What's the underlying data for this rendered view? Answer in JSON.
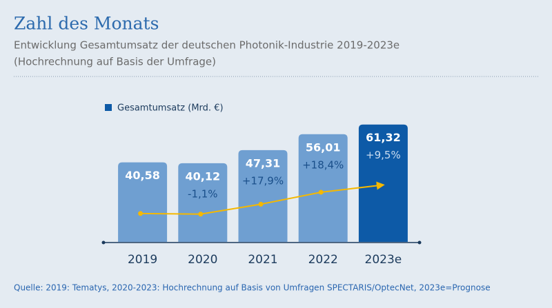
{
  "chart_data": {
    "type": "bar",
    "title": "Zahl des Monats",
    "subtitle": [
      "Entwicklung Gesamtumsatz der deutschen Photonik-Industrie 2019-2023e",
      "(Hochrechnung auf Basis der Umfrage)"
    ],
    "source": "Quelle: 2019: Tematys, 2020-2023: Hochrechnung auf Basis von Umfragen SPECTARIS/OptecNet, 2023e=Prognose",
    "categories": [
      "2019",
      "2020",
      "2021",
      "2022",
      "2023e"
    ],
    "series": [
      {
        "name": "Gesamtumsatz (Mrd. €)",
        "color": "#0d5aa7",
        "colors": [
          "#6f9fd1",
          "#6f9fd1",
          "#6f9fd1",
          "#6f9fd1",
          "#0d5aa7"
        ],
        "values": [
          40.58,
          40.12,
          47.31,
          56.01,
          61.32
        ],
        "value_labels": [
          "40,58",
          "40,12",
          "47,31",
          "56,01",
          "61,32"
        ]
      }
    ],
    "growth": {
      "values": [
        null,
        -1.1,
        17.9,
        18.4,
        9.5
      ],
      "value_labels": [
        null,
        "-1,1%",
        "+17,9%",
        "+18,4%",
        "+9,5%"
      ]
    },
    "trend_color": "#f5b800",
    "ylim": [
      -3,
      65
    ]
  }
}
